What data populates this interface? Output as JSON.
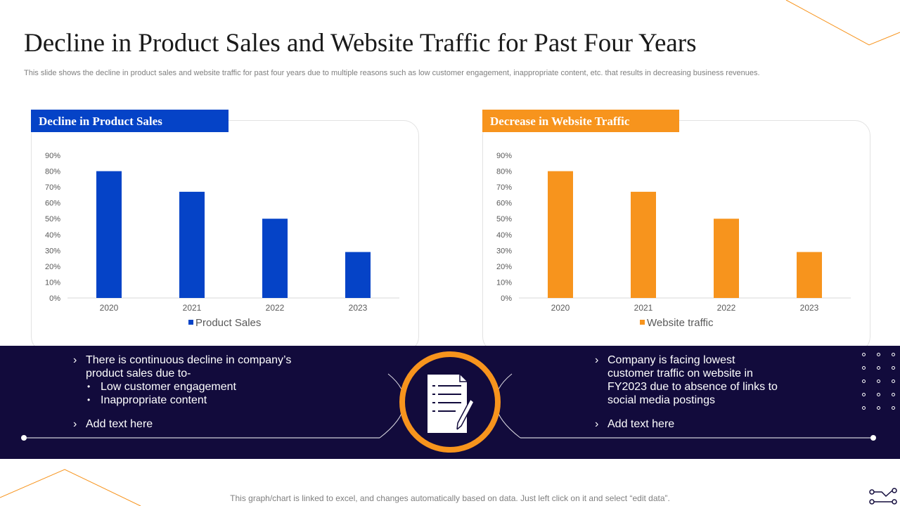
{
  "title": "Decline in Product Sales and Website Traffic for Past Four Years",
  "subtitle": "This slide shows the decline in product sales and website traffic for past four years due to multiple reasons such as low customer engagement, inappropriate content, etc. that results in decreasing business revenues.",
  "colors": {
    "blue": "#0543c7",
    "orange": "#f7941d",
    "navy": "#120b3c"
  },
  "left_card": {
    "header": "Decline in Product Sales"
  },
  "right_card": {
    "header": "Decrease in Website Traffic"
  },
  "chart_data": [
    {
      "type": "bar",
      "title": "Decline in Product Sales",
      "categories": [
        "2020",
        "2021",
        "2022",
        "2023"
      ],
      "series": [
        {
          "name": "Product Sales",
          "values": [
            80,
            67,
            50,
            29
          ]
        }
      ],
      "ytick_labels": [
        "0%",
        "10%",
        "20%",
        "30%",
        "40%",
        "50%",
        "60%",
        "70%",
        "80%",
        "90%"
      ],
      "ylim": [
        0,
        90
      ],
      "color": "#0543c7",
      "legend": "bottom",
      "grid": false
    },
    {
      "type": "bar",
      "title": "Decrease in Website Traffic",
      "categories": [
        "2020",
        "2021",
        "2022",
        "2023"
      ],
      "series": [
        {
          "name": "Website traffic",
          "values": [
            80,
            67,
            50,
            29
          ]
        }
      ],
      "ytick_labels": [
        "0%",
        "10%",
        "20%",
        "30%",
        "40%",
        "50%",
        "60%",
        "70%",
        "80%",
        "90%"
      ],
      "ylim": [
        0,
        90
      ],
      "color": "#f7941d",
      "legend": "bottom",
      "grid": false
    }
  ],
  "left_text": {
    "bullet1_line1": "There is continuous  decline in company’s",
    "bullet1_line2": "product sales due to-",
    "sub1": "Low customer engagement",
    "sub2": "Inappropriate content",
    "bullet2": "Add text here"
  },
  "right_text": {
    "line1": "Company is facing lowest",
    "line2": "customer traffic on website in",
    "line3": "FY2023 due to absence of links to",
    "line4": "social media postings",
    "bullet2": "Add text here"
  },
  "footer": "This graph/chart is linked to excel,  and changes automatically based on data. Just left click on it and select “edit data”."
}
